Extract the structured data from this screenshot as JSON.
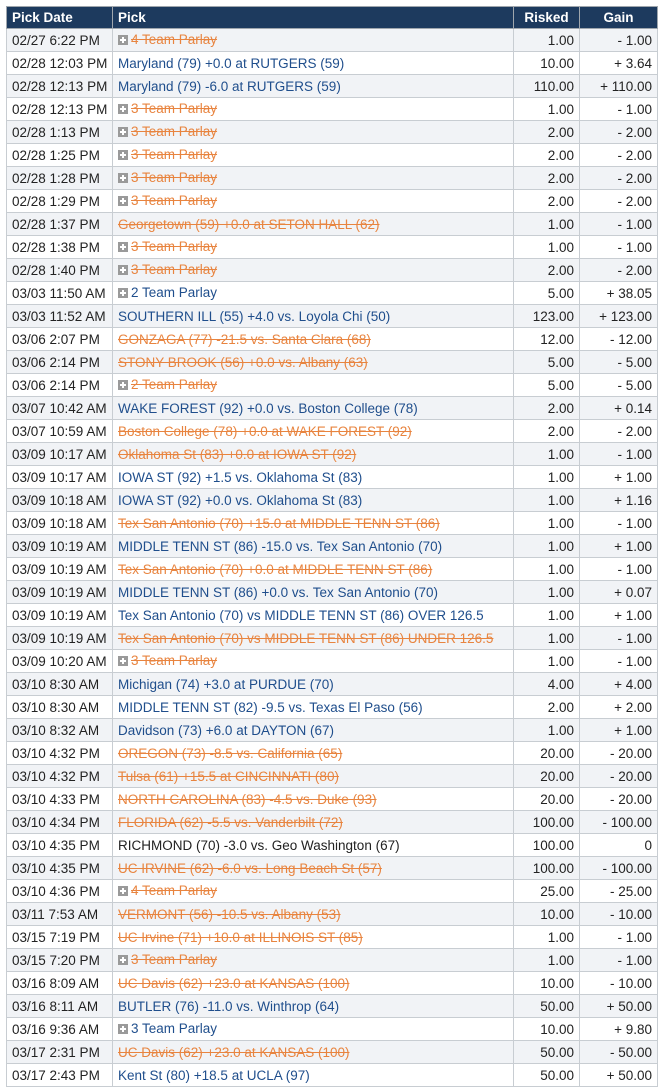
{
  "headers": {
    "date": "Pick Date",
    "pick": "Pick",
    "risked": "Risked",
    "gain": "Gain"
  },
  "colors": {
    "header_bg": "#1d3a5e",
    "win": "#1f4e8c",
    "loss": "#e8843f",
    "row_alt": "#f1f3f6"
  },
  "rows": [
    {
      "date": "02/27 6:22 PM",
      "pick": "4 Team Parlay",
      "expand": true,
      "result": "loss",
      "risked": "1.00",
      "gain": "- 1.00"
    },
    {
      "date": "02/28 12:03 PM",
      "pick": "Maryland (79) +0.0 at RUTGERS (59)",
      "expand": false,
      "result": "win",
      "risked": "10.00",
      "gain": "+ 3.64"
    },
    {
      "date": "02/28 12:13 PM",
      "pick": "Maryland (79) -6.0 at RUTGERS (59)",
      "expand": false,
      "result": "win",
      "risked": "110.00",
      "gain": "+ 110.00"
    },
    {
      "date": "02/28 12:13 PM",
      "pick": "3 Team Parlay",
      "expand": true,
      "result": "loss",
      "risked": "1.00",
      "gain": "- 1.00"
    },
    {
      "date": "02/28 1:13 PM",
      "pick": "3 Team Parlay",
      "expand": true,
      "result": "loss",
      "risked": "2.00",
      "gain": "- 2.00"
    },
    {
      "date": "02/28 1:25 PM",
      "pick": "3 Team Parlay",
      "expand": true,
      "result": "loss",
      "risked": "2.00",
      "gain": "- 2.00"
    },
    {
      "date": "02/28 1:28 PM",
      "pick": "3 Team Parlay",
      "expand": true,
      "result": "loss",
      "risked": "2.00",
      "gain": "- 2.00"
    },
    {
      "date": "02/28 1:29 PM",
      "pick": "3 Team Parlay",
      "expand": true,
      "result": "loss",
      "risked": "2.00",
      "gain": "- 2.00"
    },
    {
      "date": "02/28 1:37 PM",
      "pick": "Georgetown (59) +0.0 at SETON HALL (62)",
      "expand": false,
      "result": "loss",
      "risked": "1.00",
      "gain": "- 1.00"
    },
    {
      "date": "02/28 1:38 PM",
      "pick": "3 Team Parlay",
      "expand": true,
      "result": "loss",
      "risked": "1.00",
      "gain": "- 1.00"
    },
    {
      "date": "02/28 1:40 PM",
      "pick": "3 Team Parlay",
      "expand": true,
      "result": "loss",
      "risked": "2.00",
      "gain": "- 2.00"
    },
    {
      "date": "03/03 11:50 AM",
      "pick": "2 Team Parlay",
      "expand": true,
      "result": "win",
      "risked": "5.00",
      "gain": "+ 38.05"
    },
    {
      "date": "03/03 11:52 AM",
      "pick": "SOUTHERN ILL (55) +4.0 vs. Loyola Chi (50)",
      "expand": false,
      "result": "win",
      "risked": "123.00",
      "gain": "+ 123.00"
    },
    {
      "date": "03/06 2:07 PM",
      "pick": "GONZAGA (77) -21.5 vs. Santa Clara (68)",
      "expand": false,
      "result": "loss",
      "risked": "12.00",
      "gain": "- 12.00"
    },
    {
      "date": "03/06 2:14 PM",
      "pick": "STONY BROOK (56) +0.0 vs. Albany (63)",
      "expand": false,
      "result": "loss",
      "risked": "5.00",
      "gain": "- 5.00"
    },
    {
      "date": "03/06 2:14 PM",
      "pick": "2 Team Parlay",
      "expand": true,
      "result": "loss",
      "risked": "5.00",
      "gain": "- 5.00"
    },
    {
      "date": "03/07 10:42 AM",
      "pick": "WAKE FOREST (92) +0.0 vs. Boston College (78)",
      "expand": false,
      "result": "win",
      "risked": "2.00",
      "gain": "+ 0.14"
    },
    {
      "date": "03/07 10:59 AM",
      "pick": "Boston College (78) +0.0 at WAKE FOREST (92)",
      "expand": false,
      "result": "loss",
      "risked": "2.00",
      "gain": "- 2.00"
    },
    {
      "date": "03/09 10:17 AM",
      "pick": "Oklahoma St (83) +0.0 at IOWA ST (92)",
      "expand": false,
      "result": "loss",
      "risked": "1.00",
      "gain": "- 1.00"
    },
    {
      "date": "03/09 10:17 AM",
      "pick": "IOWA ST (92) +1.5 vs. Oklahoma St (83)",
      "expand": false,
      "result": "win",
      "risked": "1.00",
      "gain": "+ 1.00"
    },
    {
      "date": "03/09 10:18 AM",
      "pick": "IOWA ST (92) +0.0 vs. Oklahoma St (83)",
      "expand": false,
      "result": "win",
      "risked": "1.00",
      "gain": "+ 1.16"
    },
    {
      "date": "03/09 10:18 AM",
      "pick": "Tex San Antonio (70) +15.0 at MIDDLE TENN ST (86)",
      "expand": false,
      "result": "loss",
      "risked": "1.00",
      "gain": "- 1.00"
    },
    {
      "date": "03/09 10:19 AM",
      "pick": "MIDDLE TENN ST (86) -15.0 vs. Tex San Antonio (70)",
      "expand": false,
      "result": "win",
      "risked": "1.00",
      "gain": "+ 1.00"
    },
    {
      "date": "03/09 10:19 AM",
      "pick": "Tex San Antonio (70) +0.0 at MIDDLE TENN ST (86)",
      "expand": false,
      "result": "loss",
      "risked": "1.00",
      "gain": "- 1.00"
    },
    {
      "date": "03/09 10:19 AM",
      "pick": "MIDDLE TENN ST (86) +0.0 vs. Tex San Antonio (70)",
      "expand": false,
      "result": "win",
      "risked": "1.00",
      "gain": "+ 0.07"
    },
    {
      "date": "03/09 10:19 AM",
      "pick": "Tex San Antonio (70) vs MIDDLE TENN ST (86) OVER 126.5",
      "expand": false,
      "result": "win",
      "risked": "1.00",
      "gain": "+ 1.00"
    },
    {
      "date": "03/09 10:19 AM",
      "pick": "Tex San Antonio (70) vs MIDDLE TENN ST (86) UNDER 126.5",
      "expand": false,
      "result": "loss",
      "risked": "1.00",
      "gain": "- 1.00"
    },
    {
      "date": "03/09 10:20 AM",
      "pick": "3 Team Parlay",
      "expand": true,
      "result": "loss",
      "risked": "1.00",
      "gain": "- 1.00"
    },
    {
      "date": "03/10 8:30 AM",
      "pick": "Michigan (74) +3.0 at PURDUE (70)",
      "expand": false,
      "result": "win",
      "risked": "4.00",
      "gain": "+ 4.00"
    },
    {
      "date": "03/10 8:30 AM",
      "pick": "MIDDLE TENN ST (82) -9.5 vs. Texas El Paso (56)",
      "expand": false,
      "result": "win",
      "risked": "2.00",
      "gain": "+ 2.00"
    },
    {
      "date": "03/10 8:32 AM",
      "pick": "Davidson (73) +6.0 at DAYTON (67)",
      "expand": false,
      "result": "win",
      "risked": "1.00",
      "gain": "+ 1.00"
    },
    {
      "date": "03/10 4:32 PM",
      "pick": "OREGON (73) -8.5 vs. California (65)",
      "expand": false,
      "result": "loss",
      "risked": "20.00",
      "gain": "- 20.00"
    },
    {
      "date": "03/10 4:32 PM",
      "pick": "Tulsa (61) +15.5 at CINCINNATI (80)",
      "expand": false,
      "result": "loss",
      "risked": "20.00",
      "gain": "- 20.00"
    },
    {
      "date": "03/10 4:33 PM",
      "pick": "NORTH CAROLINA (83) -4.5 vs. Duke (93)",
      "expand": false,
      "result": "loss",
      "risked": "20.00",
      "gain": "- 20.00"
    },
    {
      "date": "03/10 4:34 PM",
      "pick": "FLORIDA (62) -5.5 vs. Vanderbilt (72)",
      "expand": false,
      "result": "loss",
      "risked": "100.00",
      "gain": "- 100.00"
    },
    {
      "date": "03/10 4:35 PM",
      "pick": "RICHMOND (70) -3.0 vs. Geo Washington (67)",
      "expand": false,
      "result": "push",
      "risked": "100.00",
      "gain": "0"
    },
    {
      "date": "03/10 4:35 PM",
      "pick": "UC IRVINE (62) -6.0 vs. Long Beach St (57)",
      "expand": false,
      "result": "loss",
      "risked": "100.00",
      "gain": "- 100.00"
    },
    {
      "date": "03/10 4:36 PM",
      "pick": "4 Team Parlay",
      "expand": true,
      "result": "loss",
      "risked": "25.00",
      "gain": "- 25.00"
    },
    {
      "date": "03/11 7:53 AM",
      "pick": "VERMONT (56) -10.5 vs. Albany (53)",
      "expand": false,
      "result": "loss",
      "risked": "10.00",
      "gain": "- 10.00"
    },
    {
      "date": "03/15 7:19 PM",
      "pick": "UC Irvine (71) +10.0 at ILLINOIS ST (85)",
      "expand": false,
      "result": "loss",
      "risked": "1.00",
      "gain": "- 1.00"
    },
    {
      "date": "03/15 7:20 PM",
      "pick": "3 Team Parlay",
      "expand": true,
      "result": "loss",
      "risked": "1.00",
      "gain": "- 1.00"
    },
    {
      "date": "03/16 8:09 AM",
      "pick": "UC Davis (62) +23.0 at KANSAS (100)",
      "expand": false,
      "result": "loss",
      "risked": "10.00",
      "gain": "- 10.00"
    },
    {
      "date": "03/16 8:11 AM",
      "pick": "BUTLER (76) -11.0 vs. Winthrop (64)",
      "expand": false,
      "result": "win",
      "risked": "50.00",
      "gain": "+ 50.00"
    },
    {
      "date": "03/16 9:36 AM",
      "pick": "3 Team Parlay",
      "expand": true,
      "result": "win",
      "risked": "10.00",
      "gain": "+ 9.80"
    },
    {
      "date": "03/17 2:31 PM",
      "pick": "UC Davis (62) +23.0 at KANSAS (100)",
      "expand": false,
      "result": "loss",
      "risked": "50.00",
      "gain": "- 50.00"
    },
    {
      "date": "03/17 2:43 PM",
      "pick": "Kent St (80) +18.5 at UCLA (97)",
      "expand": false,
      "result": "win",
      "risked": "50.00",
      "gain": "+ 50.00"
    }
  ]
}
